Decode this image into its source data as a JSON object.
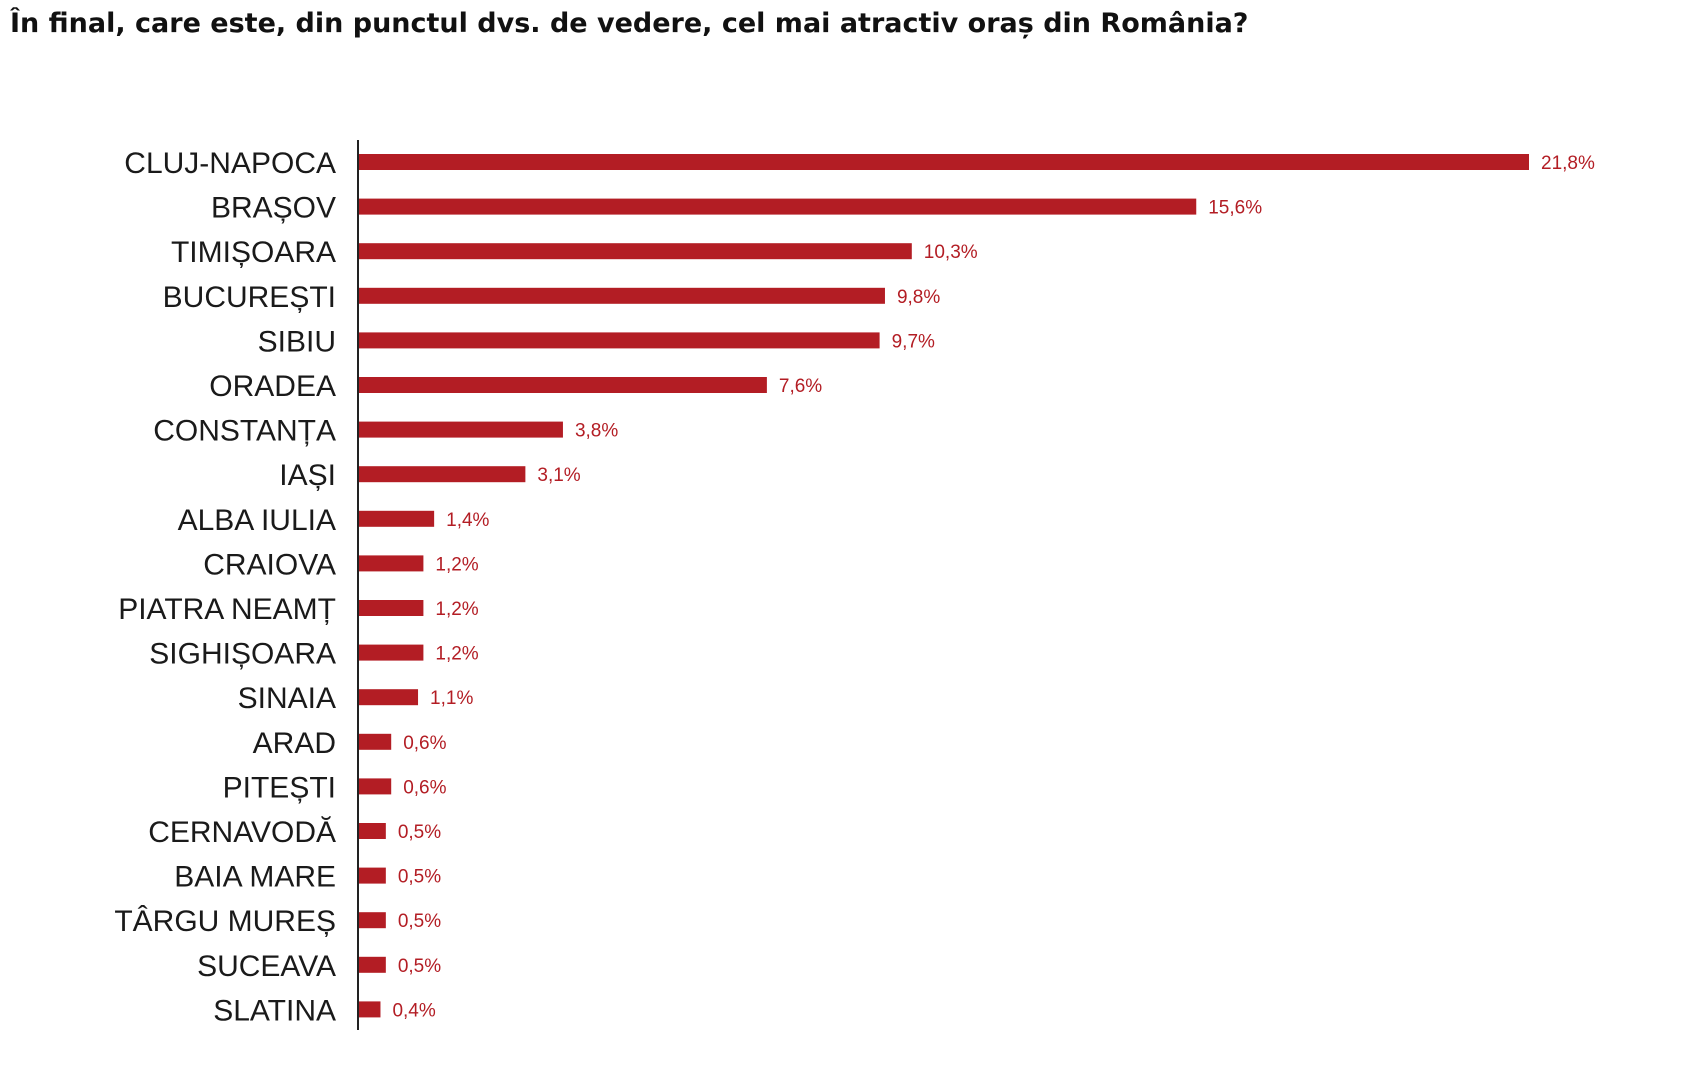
{
  "title": "În final, care este, din punctul dvs. de vedere, cel mai atractiv oraș din România?",
  "colors": {
    "bar": "#b31d24",
    "value_label": "#b31d24",
    "axis": "#222222",
    "category_label": "#1a1a1a"
  },
  "chart_data": {
    "type": "bar",
    "orientation": "horizontal",
    "title": "În final, care este, din punctul dvs. de vedere, cel mai atractiv oraș din România?",
    "xlabel": "",
    "ylabel": "",
    "unit": "%",
    "grid": false,
    "legend": "none",
    "xlim": [
      0,
      25
    ],
    "categories": [
      "CLUJ-NAPOCA",
      "BRAȘOV",
      "TIMIȘOARA",
      "BUCUREȘTI",
      "SIBIU",
      "ORADEA",
      "CONSTANȚA",
      "IAȘI",
      "ALBA IULIA",
      "CRAIOVA",
      "PIATRA NEAMȚ",
      "SIGHIȘOARA",
      "SINAIA",
      "ARAD",
      "PITEȘTI",
      "CERNAVODĂ",
      "BAIA MARE",
      "TÂRGU MUREȘ",
      "SUCEAVA",
      "SLATINA"
    ],
    "values": [
      21.8,
      15.6,
      10.3,
      9.8,
      9.7,
      7.6,
      3.8,
      3.1,
      1.4,
      1.2,
      1.2,
      1.2,
      1.1,
      0.6,
      0.6,
      0.5,
      0.5,
      0.5,
      0.5,
      0.4
    ],
    "value_labels": [
      "21,8%",
      "15,6%",
      "10,3%",
      "9,8%",
      "9,7%",
      "7,6%",
      "3,8%",
      "3,1%",
      "1,4%",
      "1,2%",
      "1,2%",
      "1,2%",
      "1,1%",
      "0,6%",
      "0,6%",
      "0,5%",
      "0,5%",
      "0,5%",
      "0,5%",
      "0,4%"
    ]
  }
}
